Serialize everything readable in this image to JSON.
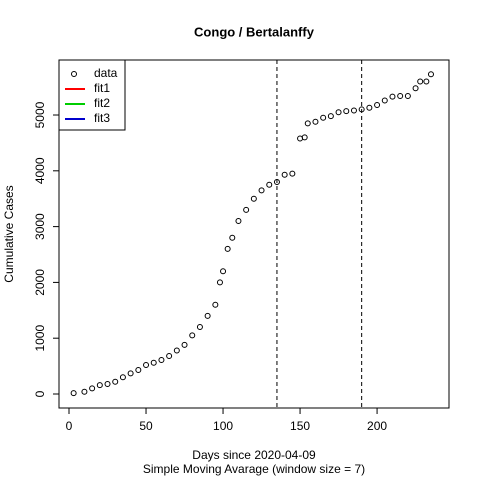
{
  "chart_data": {
    "type": "scatter",
    "title": "Congo / Bertalanffy",
    "xlabel": "Days since 2020-04-09",
    "subtitle": "Simple Moving Avarage (window size = 7)",
    "ylabel": "Cumulative Cases",
    "xlim": [
      -6.5,
      246.7
    ],
    "ylim": [
      -251,
      5986
    ],
    "xticks": [
      0,
      50,
      100,
      150,
      200
    ],
    "yticks": [
      0,
      1000,
      2000,
      3000,
      4000,
      5000
    ],
    "vlines": [
      135,
      190
    ],
    "series": [
      {
        "name": "data",
        "color": "#000000",
        "x": [
          3,
          10,
          15,
          20,
          25,
          30,
          35,
          40,
          45,
          50,
          55,
          60,
          65,
          70,
          75,
          80,
          85,
          90,
          95,
          98,
          100,
          103,
          106,
          110,
          115,
          120,
          125,
          130,
          135,
          140,
          145,
          150,
          153,
          155,
          160,
          165,
          170,
          175,
          180,
          185,
          190,
          195,
          200,
          205,
          210,
          215,
          220,
          225,
          228,
          232,
          235
        ],
        "values": [
          15,
          40,
          100,
          160,
          180,
          220,
          300,
          370,
          430,
          520,
          560,
          610,
          680,
          780,
          880,
          1050,
          1200,
          1400,
          1600,
          2000,
          2200,
          2600,
          2800,
          3100,
          3300,
          3500,
          3650,
          3750,
          3800,
          3930,
          3950,
          4580,
          4600,
          4850,
          4880,
          4950,
          4980,
          5050,
          5070,
          5080,
          5100,
          5130,
          5180,
          5260,
          5330,
          5340,
          5340,
          5480,
          5600,
          5600,
          5730
        ]
      }
    ],
    "fits": [
      {
        "name": "fit1",
        "color": "#ff0000"
      },
      {
        "name": "fit2",
        "color": "#00cd00"
      },
      {
        "name": "fit3",
        "color": "#0000cd"
      }
    ]
  }
}
